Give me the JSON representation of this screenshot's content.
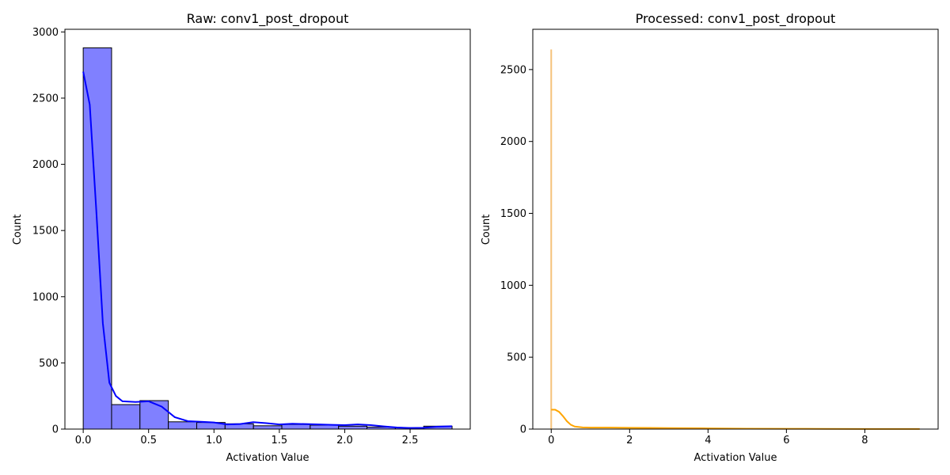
{
  "chart_data": [
    {
      "type": "bar",
      "title": "Raw: conv1_post_dropout",
      "xlabel": "Activation Value",
      "ylabel": "Count",
      "xlim": [
        -0.14,
        2.96
      ],
      "ylim": [
        0,
        3020
      ],
      "xticks": [
        0.0,
        0.5,
        1.0,
        1.5,
        2.0,
        2.5
      ],
      "xtick_labels": [
        "0.0",
        "0.5",
        "1.0",
        "1.5",
        "2.0",
        "2.5"
      ],
      "yticks": [
        0,
        500,
        1000,
        1500,
        2000,
        2500,
        3000
      ],
      "ytick_labels": [
        "0",
        "500",
        "1000",
        "1500",
        "2000",
        "2500",
        "3000"
      ],
      "bin_edges": [
        0.0,
        0.217,
        0.434,
        0.651,
        0.868,
        1.085,
        1.302,
        1.519,
        1.736,
        1.953,
        2.17,
        2.387,
        2.604,
        2.821
      ],
      "counts": [
        2880,
        185,
        215,
        55,
        50,
        40,
        25,
        35,
        30,
        22,
        15,
        10,
        22
      ],
      "kde_x": [
        0.0,
        0.05,
        0.1,
        0.15,
        0.2,
        0.25,
        0.3,
        0.4,
        0.5,
        0.6,
        0.7,
        0.8,
        0.9,
        1.0,
        1.1,
        1.2,
        1.3,
        1.4,
        1.5,
        1.6,
        1.7,
        1.8,
        1.9,
        2.0,
        2.1,
        2.2,
        2.3,
        2.4,
        2.5,
        2.6,
        2.7,
        2.82
      ],
      "kde_y": [
        2700,
        2450,
        1650,
        800,
        350,
        250,
        210,
        205,
        210,
        170,
        90,
        60,
        55,
        50,
        35,
        38,
        52,
        45,
        35,
        40,
        38,
        35,
        32,
        30,
        35,
        30,
        20,
        12,
        8,
        10,
        18,
        22
      ],
      "fill_color": "#8080ff",
      "line_color": "#0000ff"
    },
    {
      "type": "bar",
      "title": "Processed: conv1_post_dropout",
      "xlabel": "Activation Value",
      "ylabel": "Count",
      "xlim": [
        -0.47,
        9.87
      ],
      "ylim": [
        0,
        2780
      ],
      "xticks": [
        0,
        2,
        4,
        6,
        8
      ],
      "xtick_labels": [
        "0",
        "2",
        "4",
        "6",
        "8"
      ],
      "yticks": [
        0,
        500,
        1000,
        1500,
        2000,
        2500
      ],
      "ytick_labels": [
        "0",
        "500",
        "1000",
        "1500",
        "2000",
        "2500"
      ],
      "spike_x": 0.0,
      "spike_count": 2640,
      "kde_x": [
        0.0,
        0.1,
        0.2,
        0.3,
        0.4,
        0.5,
        0.6,
        0.8,
        1.0,
        1.5,
        2.0,
        2.5,
        3.0,
        4.0,
        5.0,
        6.0,
        7.0,
        8.0,
        9.0,
        9.4
      ],
      "kde_y": [
        135,
        135,
        120,
        90,
        55,
        30,
        18,
        12,
        10,
        10,
        9,
        8,
        7,
        5,
        3,
        2,
        1.5,
        1,
        0.8,
        0.5
      ],
      "fill_color": "#f5c27a",
      "line_color": "#ffa500"
    }
  ]
}
